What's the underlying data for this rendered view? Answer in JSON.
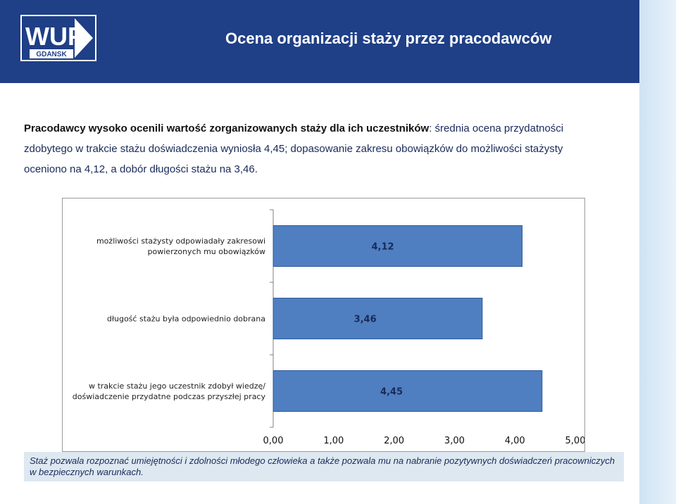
{
  "header": {
    "logo_text": "WUP",
    "logo_subtext": "GDANSK",
    "title": "Ocena organizacji staży przez pracodawców"
  },
  "summary": {
    "bold_part": "Pracodawcy wysoko ocenili wartość zorganizowanych staży dla ich uczestników",
    "rest": ": średnia ocena przydatności zdobytego w trakcie stażu doświadczenia wyniosła 4,45; dopasowanie zakresu obowiązków do możliwości stażysty oceniono na 4,12, a dobór długości stażu na 3,46."
  },
  "colors": {
    "header_bg": "#1f3f86",
    "bar_fill": "#4f7fc0",
    "bar_stroke": "#2e5a9c",
    "note_bg": "#dde8f1"
  },
  "chart_data": {
    "type": "bar",
    "orientation": "horizontal",
    "categories": [
      [
        "możliwości stażysty odpowiadały zakresowi",
        "powierzonych mu obowiązków"
      ],
      [
        "długość stażu była odpowiednio dobrana"
      ],
      [
        "w trakcie stażu jego uczestnik zdobył wiedzę/",
        "doświadczenie przydatne podczas przyszłej pracy"
      ]
    ],
    "values": [
      4.12,
      3.46,
      4.45
    ],
    "value_labels": [
      "4,12",
      "3,46",
      "4,45"
    ],
    "x_ticks": [
      "0,00",
      "1,00",
      "2,00",
      "3,00",
      "4,00",
      "5,00"
    ],
    "xlim": [
      0,
      5
    ],
    "grid": false
  },
  "note": {
    "text": "Staż pozwala rozpoznać umiejętności i zdolności młodego człowieka a także pozwala mu na nabranie pozytywnych doświadczeń pracowniczych w bezpiecznych warunkach."
  }
}
